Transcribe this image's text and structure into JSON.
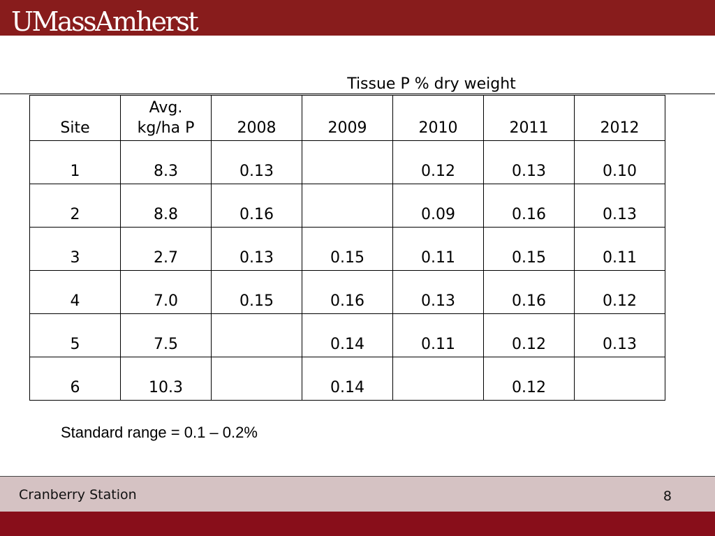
{
  "header": {
    "logo_text": "UMassAmherst",
    "brand_color": "#881c1c"
  },
  "table": {
    "caption": "Tissue P % dry weight",
    "columns": [
      {
        "lines": [
          "",
          "Site"
        ]
      },
      {
        "lines": [
          "Avg.",
          "kg/ha P"
        ]
      },
      {
        "lines": [
          "",
          "2008"
        ]
      },
      {
        "lines": [
          "",
          "2009"
        ]
      },
      {
        "lines": [
          "",
          "2010"
        ]
      },
      {
        "lines": [
          "",
          "2011"
        ]
      },
      {
        "lines": [
          "",
          "2012"
        ]
      }
    ],
    "rows": [
      [
        "1",
        "8.3",
        "0.13",
        "",
        "0.12",
        "0.13",
        "0.10"
      ],
      [
        "2",
        "8.8",
        "0.16",
        "",
        "0.09",
        "0.16",
        "0.13"
      ],
      [
        "3",
        "2.7",
        "0.13",
        "0.15",
        "0.11",
        "0.15",
        "0.11"
      ],
      [
        "4",
        "7.0",
        "0.15",
        "0.16",
        "0.13",
        "0.16",
        "0.12"
      ],
      [
        "5",
        "7.5",
        "",
        "0.14",
        "0.11",
        "0.12",
        "0.13"
      ],
      [
        "6",
        "10.3",
        "",
        "0.14",
        "",
        "0.12",
        ""
      ]
    ]
  },
  "note": "Standard range = 0.1 – 0.2%",
  "footer": {
    "label": "Cranberry Station",
    "page_number": "8"
  }
}
